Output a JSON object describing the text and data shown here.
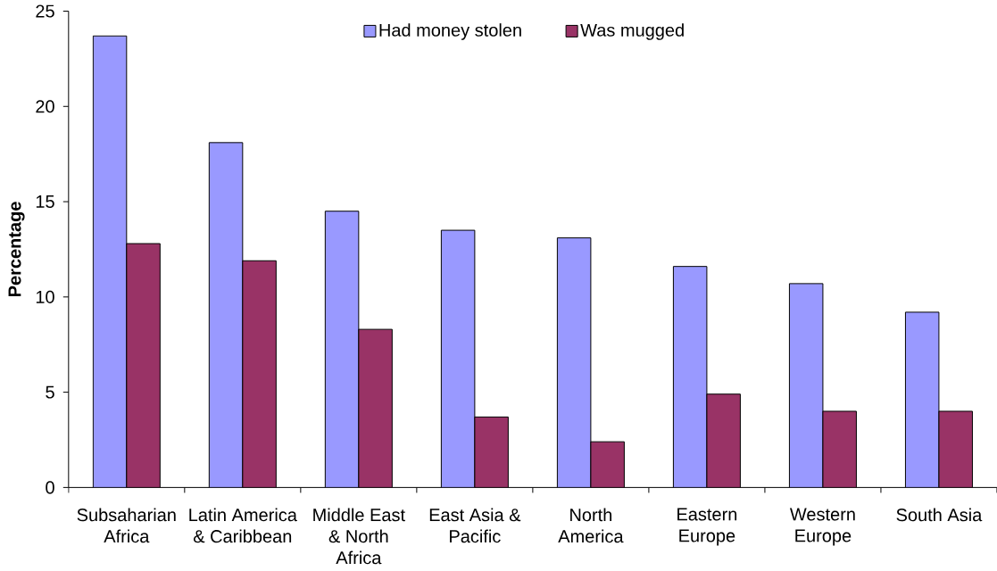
{
  "chart_data": {
    "type": "bar",
    "ylabel": "Percentage",
    "categories": [
      "Subsaharian Africa",
      "Latin America & Caribbean",
      "Middle East & North Africa",
      "East Asia & Pacific",
      "North America",
      "Eastern Europe",
      "Western Europe",
      "South Asia"
    ],
    "series": [
      {
        "name": "Had money stolen",
        "color": "#9999ff",
        "values": [
          23.7,
          18.1,
          14.5,
          13.5,
          13.1,
          11.6,
          10.7,
          9.2
        ]
      },
      {
        "name": "Was mugged",
        "color": "#993366",
        "values": [
          12.8,
          11.9,
          8.3,
          3.7,
          2.4,
          4.9,
          4.0,
          4.0
        ]
      }
    ],
    "ylim": [
      0,
      25
    ],
    "yticks": [
      0,
      5,
      10,
      15,
      20,
      25
    ],
    "legend": "top"
  }
}
